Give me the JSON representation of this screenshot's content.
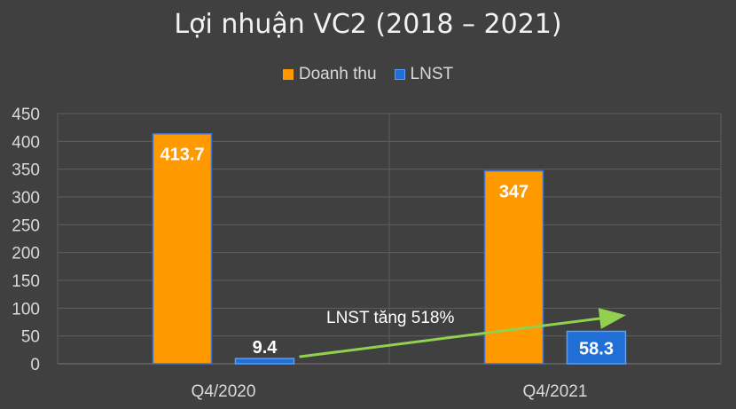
{
  "chart_data": {
    "type": "bar",
    "title": "Lợi nhuận VC2 (2018 – 2021)",
    "categories": [
      "Q4/2020",
      "Q4/2021"
    ],
    "series": [
      {
        "name": "Doanh thu",
        "color": "#ff9900",
        "values": [
          413.7,
          347
        ],
        "labels": [
          "413.7",
          "347"
        ]
      },
      {
        "name": "LNST",
        "color": "#1f6fd6",
        "values": [
          9.4,
          58.3
        ],
        "labels": [
          "9.4",
          "58.3"
        ]
      }
    ],
    "ylim": [
      0,
      450
    ],
    "yticks": [
      0,
      50,
      100,
      150,
      200,
      250,
      300,
      350,
      400,
      450
    ],
    "xlabel": "",
    "ylabel": "",
    "legend_position": "top-center",
    "annotation": {
      "text": "LNST tăng 518%",
      "color": "#92d050"
    }
  }
}
